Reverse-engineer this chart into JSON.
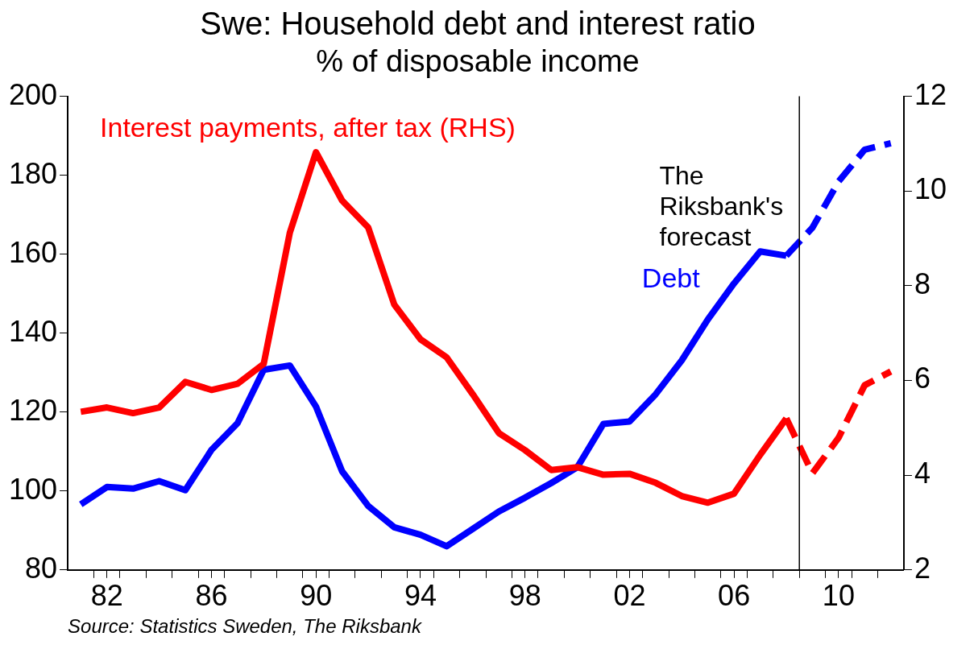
{
  "chart_data": {
    "type": "line",
    "title": "Swe: Household debt and interest ratio",
    "subtitle": "% of disposable income",
    "x": [
      1981,
      1982,
      1983,
      1984,
      1985,
      1986,
      1987,
      1988,
      1989,
      1990,
      1991,
      1992,
      1993,
      1994,
      1995,
      1996,
      1997,
      1998,
      1999,
      2000,
      2001,
      2002,
      2003,
      2004,
      2005,
      2006,
      2007,
      2008
    ],
    "series": [
      {
        "name": "Interest payments, after tax (RHS)",
        "color": "#ff0000",
        "axis": "y2",
        "line_style": "solid",
        "values": [
          5.34,
          5.43,
          5.31,
          5.43,
          5.97,
          5.8,
          5.93,
          6.35,
          9.12,
          10.82,
          9.8,
          9.23,
          7.6,
          6.87,
          6.49,
          5.71,
          4.89,
          4.53,
          4.11,
          4.17,
          4.01,
          4.03,
          3.84,
          3.56,
          3.42,
          3.61,
          4.43,
          5.2
        ]
      },
      {
        "name": "Debt",
        "color": "#0000ff",
        "line_style": "solid",
        "values": [
          96.6,
          101,
          100.6,
          102.5,
          100.2,
          110.4,
          117.2,
          130.7,
          131.8,
          121.4,
          105,
          96.2,
          90.8,
          88.9,
          86,
          90.4,
          94.8,
          98.3,
          102,
          106,
          117,
          117.6,
          124.5,
          133.1,
          143.5,
          152.6,
          160.7,
          159.6
        ]
      },
      {
        "color": "#ff0000",
        "axis": "y2",
        "line_style": "dashed",
        "x": [
          2008,
          2009,
          2010,
          2011,
          2012
        ],
        "values": [
          5.2,
          4.04,
          4.79,
          5.9,
          6.19
        ]
      },
      {
        "color": "#0000ff",
        "line_style": "dashed",
        "x": [
          2008,
          2009,
          2010,
          2011,
          2012
        ],
        "values": [
          159.6,
          166.7,
          178.4,
          186.5,
          188.1
        ]
      }
    ],
    "xlim": [
      1980.5,
      2012.5
    ],
    "xticks": [
      {
        "value": 1981.5,
        "label": null
      },
      {
        "value": 1982,
        "label": "82"
      },
      {
        "value": 1982.5,
        "label": null
      },
      {
        "value": 1983.5,
        "label": null
      },
      {
        "value": 1984.5,
        "label": null
      },
      {
        "value": 1985.5,
        "label": null
      },
      {
        "value": 1986,
        "label": "86"
      },
      {
        "value": 1986.5,
        "label": null
      },
      {
        "value": 1987.5,
        "label": null
      },
      {
        "value": 1988.5,
        "label": null
      },
      {
        "value": 1989.5,
        "label": null
      },
      {
        "value": 1990,
        "label": "90"
      },
      {
        "value": 1990.5,
        "label": null
      },
      {
        "value": 1991.5,
        "label": null
      },
      {
        "value": 1992.5,
        "label": null
      },
      {
        "value": 1993.5,
        "label": null
      },
      {
        "value": 1994,
        "label": "94"
      },
      {
        "value": 1994.5,
        "label": null
      },
      {
        "value": 1995.5,
        "label": null
      },
      {
        "value": 1996.5,
        "label": null
      },
      {
        "value": 1997.5,
        "label": null
      },
      {
        "value": 1998,
        "label": "98"
      },
      {
        "value": 1998.5,
        "label": null
      },
      {
        "value": 1999.5,
        "label": null
      },
      {
        "value": 2000.5,
        "label": null
      },
      {
        "value": 2001.5,
        "label": null
      },
      {
        "value": 2002,
        "label": "02"
      },
      {
        "value": 2002.5,
        "label": null
      },
      {
        "value": 2003.5,
        "label": null
      },
      {
        "value": 2004.5,
        "label": null
      },
      {
        "value": 2005.5,
        "label": null
      },
      {
        "value": 2006,
        "label": "06"
      },
      {
        "value": 2006.5,
        "label": null
      },
      {
        "value": 2007.5,
        "label": null
      },
      {
        "value": 2008.5,
        "label": null
      },
      {
        "value": 2009.5,
        "label": null
      },
      {
        "value": 2010,
        "label": "10"
      },
      {
        "value": 2010.5,
        "label": null
      },
      {
        "value": 2011.5,
        "label": null
      }
    ],
    "ylim": [
      80,
      200
    ],
    "yticks": [
      80,
      100,
      120,
      140,
      160,
      180,
      200
    ],
    "y2lim": [
      2,
      12
    ],
    "y2ticks": [
      2,
      4,
      6,
      8,
      10,
      12
    ],
    "ref_lines": [
      {
        "axis": "x",
        "value": 2008.5,
        "label": "The Riksbank's forecast",
        "color": "#000000"
      }
    ],
    "annotations": [
      "Source: Statistics Sweden, The Riksbank"
    ],
    "grid": false,
    "legend": false,
    "marker": "none"
  }
}
